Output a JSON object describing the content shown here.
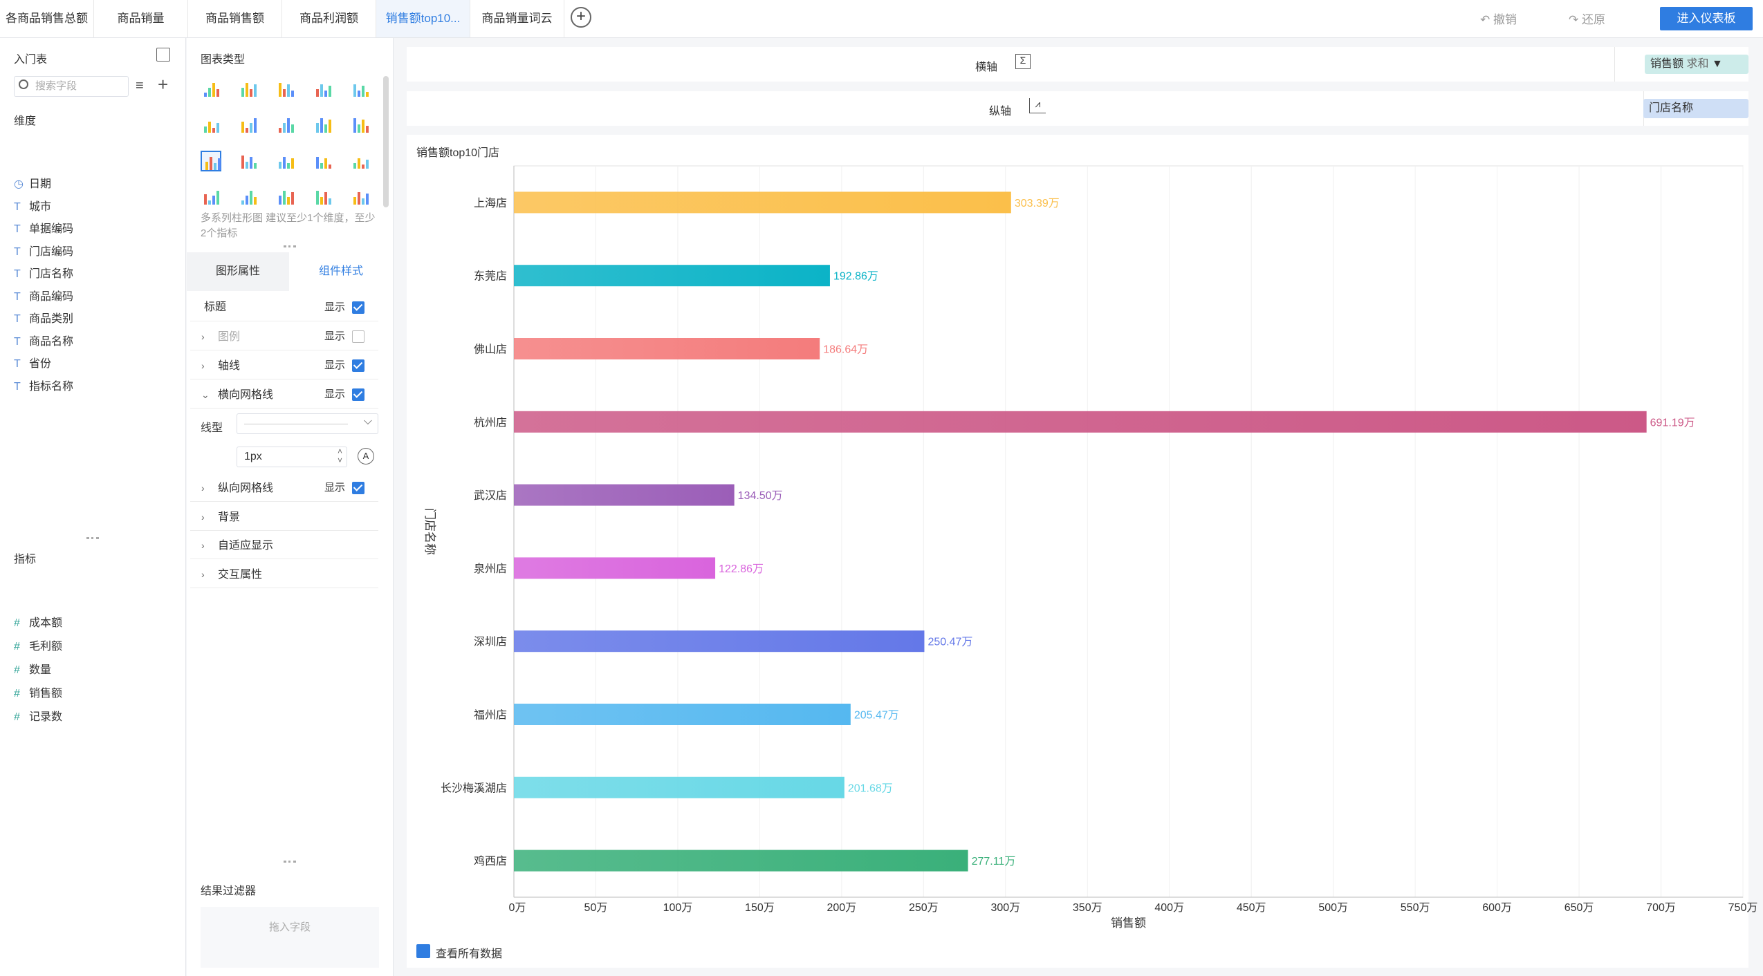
{
  "tabs": [
    {
      "label": "各商品销售总额"
    },
    {
      "label": "商品销量"
    },
    {
      "label": "商品销售额"
    },
    {
      "label": "商品利润额"
    },
    {
      "label": "销售额top10..."
    },
    {
      "label": "商品销量词云"
    }
  ],
  "toolbar": {
    "undo_label": "撤销",
    "redo_label": "还原",
    "enter_label": "进入仪表板"
  },
  "left": {
    "table_title": "入门表",
    "search_placeholder": "搜索字段",
    "dim_title": "维度",
    "dimensions": [
      {
        "label": "日期",
        "icon": "clock-icon"
      },
      {
        "label": "城市",
        "icon": "text-type-icon"
      },
      {
        "label": "单据编码",
        "icon": "text-type-icon"
      },
      {
        "label": "门店编码",
        "icon": "text-type-icon"
      },
      {
        "label": "门店名称",
        "icon": "text-type-icon"
      },
      {
        "label": "商品编码",
        "icon": "text-type-icon"
      },
      {
        "label": "商品类别",
        "icon": "text-type-icon"
      },
      {
        "label": "商品名称",
        "icon": "text-type-icon"
      },
      {
        "label": "省份",
        "icon": "text-type-icon"
      },
      {
        "label": "指标名称",
        "icon": "text-type-icon"
      }
    ],
    "metric_title": "指标",
    "metrics": [
      {
        "label": "成本额"
      },
      {
        "label": "毛利额"
      },
      {
        "label": "数量"
      },
      {
        "label": "销售额"
      },
      {
        "label": "记录数"
      }
    ]
  },
  "mid": {
    "chart_type_title": "图表类型",
    "hint": "多系列柱形图 建议至少1个维度，至少2个指标",
    "tab_graph": "图形属性",
    "tab_component": "组件样式",
    "props": [
      {
        "label": "标题",
        "show": "显示",
        "checked": true,
        "chev": "",
        "disabled": false
      },
      {
        "label": "图例",
        "show": "显示",
        "checked": false,
        "chev": ">",
        "disabled": true
      },
      {
        "label": "轴线",
        "show": "显示",
        "checked": true,
        "chev": ">",
        "disabled": false
      },
      {
        "label": "横向网格线",
        "show": "显示",
        "checked": true,
        "chev": "v",
        "disabled": false
      }
    ],
    "line_type_label": "线型",
    "line_width_value": "1px",
    "props2": [
      {
        "label": "纵向网格线",
        "show": "显示",
        "checked": true
      },
      {
        "label": "背景"
      },
      {
        "label": "自适应显示"
      },
      {
        "label": "交互属性"
      }
    ],
    "filter_title": "结果过滤器",
    "filter_drop": "拖入字段"
  },
  "axes": {
    "x_label": "横轴",
    "y_label": "纵轴",
    "x_pill_field": "销售额",
    "x_pill_agg": "求和",
    "y_pill_field": "门店名称"
  },
  "chart_footer": {
    "view_all_label": "查看所有数据"
  },
  "chart_data": {
    "type": "bar",
    "orientation": "horizontal",
    "title": "销售额top10门店",
    "xlabel": "销售额",
    "ylabel": "门店名称",
    "xlim": [
      0,
      750
    ],
    "x_ticks": [
      "0万",
      "50万",
      "100万",
      "150万",
      "200万",
      "250万",
      "300万",
      "350万",
      "400万",
      "450万",
      "500万",
      "550万",
      "600万",
      "650万",
      "700万",
      "750万"
    ],
    "categories": [
      "上海店",
      "东莞店",
      "佛山店",
      "杭州店",
      "武汉店",
      "泉州店",
      "深圳店",
      "福州店",
      "长沙梅溪湖店",
      "鸡西店"
    ],
    "values": [
      303.39,
      192.86,
      186.64,
      691.19,
      134.5,
      122.86,
      250.47,
      205.47,
      201.68,
      277.11
    ],
    "labels": [
      "303.39万",
      "192.86万",
      "186.64万",
      "691.19万",
      "134.50万",
      "122.86万",
      "250.47万",
      "205.47万",
      "201.68万",
      "277.11万"
    ],
    "colors": [
      "#fbbf4a",
      "#0bb3c7",
      "#f47c7c",
      "#cc5987",
      "#9b5eb8",
      "#d964dd",
      "#6478e8",
      "#55b8f0",
      "#67d8e6",
      "#3ab07a"
    ],
    "grid_vertical": true
  }
}
